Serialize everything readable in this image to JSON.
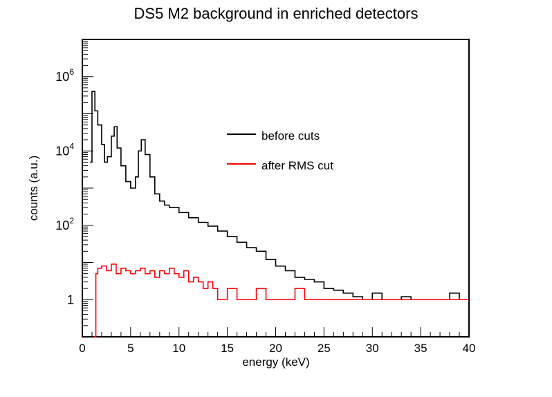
{
  "chart_data": {
    "type": "line",
    "title": "DS5 M2 background in enriched detectors",
    "xlabel": "energy (keV)",
    "ylabel": "counts (a.u.)",
    "xlim": [
      0,
      40
    ],
    "ylog": true,
    "ylim": [
      0.1,
      10000000
    ],
    "x_ticks": [
      0,
      5,
      10,
      15,
      20,
      25,
      30,
      35,
      40
    ],
    "y_ticks": [
      {
        "value": 1,
        "base": "1",
        "exp": ""
      },
      {
        "value": 100,
        "base": "10",
        "exp": "2"
      },
      {
        "value": 10000,
        "base": "10",
        "exp": "4"
      },
      {
        "value": 1000000,
        "base": "10",
        "exp": "6"
      }
    ],
    "legend_position": "upper-right",
    "series": [
      {
        "name": "before cuts",
        "color": "#000000",
        "x": [
          0.8,
          1.0,
          1.3,
          1.6,
          2.0,
          2.3,
          2.6,
          3.0,
          3.3,
          3.6,
          4.0,
          4.5,
          5.0,
          5.5,
          5.8,
          6.1,
          6.5,
          7.0,
          7.5,
          8.0,
          8.5,
          9.0,
          10.0,
          11.0,
          12.0,
          13.0,
          14.0,
          15.0,
          16.0,
          17.0,
          18.0,
          19.0,
          20.0,
          21.0,
          22.0,
          23.0,
          24.0,
          25.0,
          26.0,
          27.0,
          28.0,
          29.0,
          30.0,
          31.0,
          32.0,
          33.0,
          34.0,
          35.0,
          36.0,
          37.0,
          38.0,
          39.0,
          40.0
        ],
        "y": [
          5000,
          400000,
          120000,
          50000,
          15000,
          5000,
          7000,
          25000,
          45000,
          12000,
          4000,
          1500,
          1000,
          2000,
          10000,
          20000,
          8000,
          2000,
          700,
          450,
          350,
          300,
          220,
          160,
          120,
          95,
          70,
          50,
          35,
          25,
          20,
          12,
          8,
          6,
          4,
          3.5,
          3,
          2,
          1.8,
          1.5,
          1.2,
          1.0,
          1.5,
          1.0,
          1.0,
          1.2,
          1.0,
          1.0,
          1.0,
          1.0,
          1.5,
          1.0,
          1.0
        ]
      },
      {
        "name": "after RMS cut",
        "color": "#ff0000",
        "x": [
          1.2,
          1.4,
          1.6,
          2.0,
          2.5,
          3.0,
          3.5,
          4.0,
          4.5,
          5.0,
          5.5,
          6.0,
          6.5,
          7.0,
          7.5,
          8.0,
          8.5,
          9.0,
          9.5,
          10.0,
          10.5,
          11.0,
          11.5,
          12.0,
          12.5,
          13.0,
          13.5,
          14.0,
          15.0,
          16.0,
          17.0,
          18.0,
          19.0,
          20.0,
          21.0,
          22.0,
          23.0,
          24.0,
          25.0,
          26.0,
          27.0,
          28.0,
          29.0,
          30.0,
          31.0,
          32.0,
          33.0,
          34.0,
          35.0,
          36.0,
          37.0,
          38.0,
          39.0,
          40.0
        ],
        "y": [
          0.1,
          5,
          7,
          8,
          6,
          9,
          5,
          7,
          6,
          5,
          6,
          7,
          5,
          6,
          4,
          6,
          5,
          7,
          5,
          4,
          6,
          3,
          4,
          3,
          2,
          3,
          2,
          1,
          2,
          1,
          1,
          2,
          1,
          1,
          1,
          2,
          1,
          1,
          1,
          1,
          1,
          1,
          1,
          1,
          1,
          1,
          1,
          1,
          1,
          1,
          1,
          1,
          1,
          1
        ]
      }
    ]
  }
}
